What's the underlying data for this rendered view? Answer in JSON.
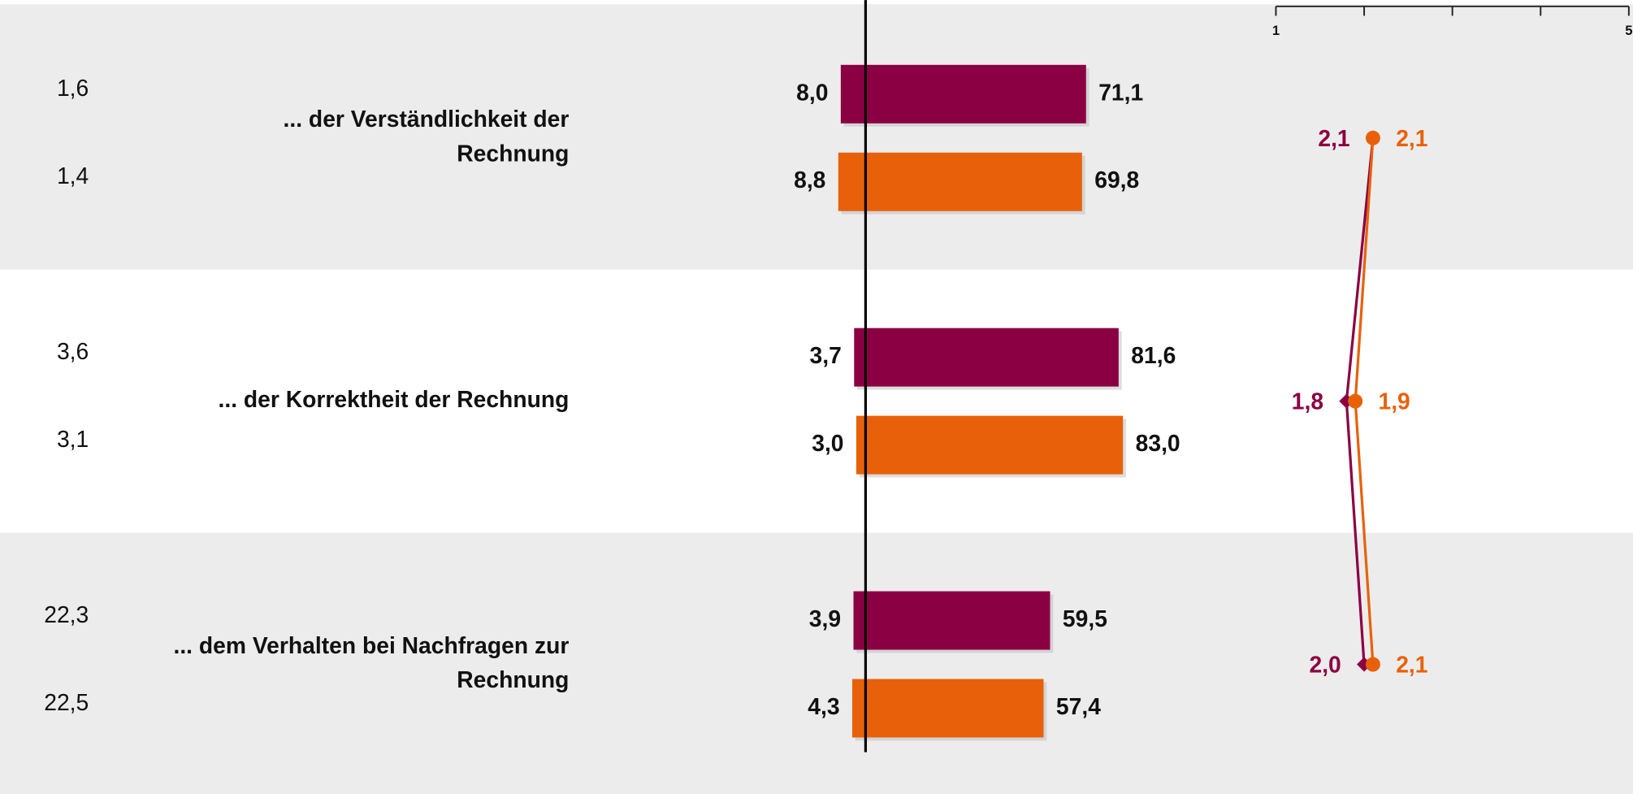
{
  "chart_data": {
    "type": "diverging_bar_profile",
    "colors": [
      "#8b0042",
      "#e8610a"
    ],
    "mean_xlim": [
      1,
      5
    ],
    "mean_xticks": [
      1,
      5
    ],
    "mean_minor_xticks": [
      2,
      3,
      4
    ],
    "rows": [
      {
        "label_lines": [
          "... der Verständlichkeit der",
          "Rechnung"
        ],
        "side_values": [
          1.6,
          1.4
        ],
        "side_labels": [
          "1,6",
          "1,4"
        ],
        "negative": [
          8.0,
          8.8
        ],
        "negative_labels": [
          "8,0",
          "8,8"
        ],
        "positive": [
          71.1,
          69.8
        ],
        "positive_labels": [
          "71,1",
          "69,8"
        ],
        "mean": [
          2.1,
          2.1
        ],
        "mean_labels": [
          "2,1",
          "2,1"
        ]
      },
      {
        "label_lines": [
          "... der Korrektheit der Rechnung"
        ],
        "side_values": [
          3.6,
          3.1
        ],
        "side_labels": [
          "3,6",
          "3,1"
        ],
        "negative": [
          3.7,
          3.0
        ],
        "negative_labels": [
          "3,7",
          "3,0"
        ],
        "positive": [
          81.6,
          83.0
        ],
        "positive_labels": [
          "81,6",
          "83,0"
        ],
        "mean": [
          1.8,
          1.9
        ],
        "mean_labels": [
          "1,8",
          "1,9"
        ]
      },
      {
        "label_lines": [
          "... dem Verhalten bei Nachfragen zur",
          "Rechnung"
        ],
        "side_values": [
          22.3,
          22.5
        ],
        "side_labels": [
          "22,3",
          "22,5"
        ],
        "negative": [
          3.9,
          4.3
        ],
        "negative_labels": [
          "3,9",
          "4,3"
        ],
        "positive": [
          59.5,
          57.4
        ],
        "positive_labels": [
          "59,5",
          "57,4"
        ],
        "mean": [
          2.0,
          2.1
        ],
        "mean_labels": [
          "2,0",
          "2,1"
        ]
      }
    ]
  }
}
